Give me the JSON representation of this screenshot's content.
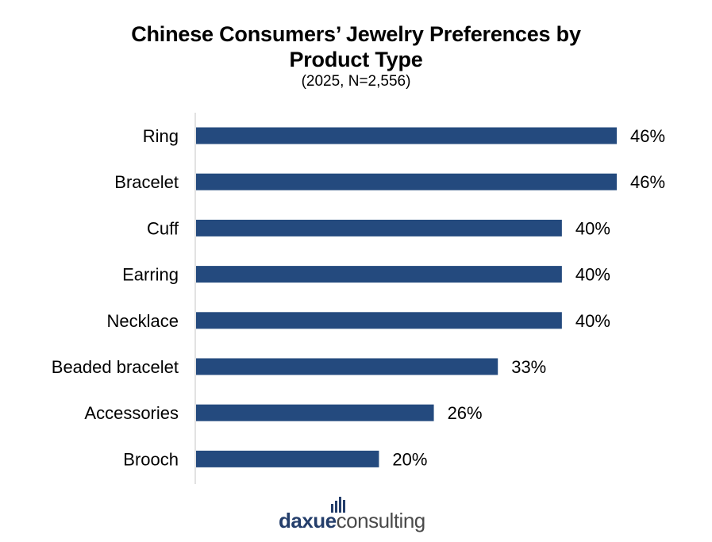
{
  "title_line1": "Chinese Consumers’ Jewelry Preferences by",
  "title_line2": "Product Type",
  "subtitle": "(2025, N=2,556)",
  "colors": {
    "bar": "#244a7e",
    "axis": "#d9d9d9",
    "logo_primary": "#243e6b",
    "logo_secondary": "#4a4a4a"
  },
  "logo": {
    "part1": "daxue",
    "part2": "consulting",
    "icon": "bar-chart-icon"
  },
  "chart_data": {
    "type": "bar",
    "orientation": "horizontal",
    "title": "Chinese Consumers’ Jewelry Preferences by Product Type",
    "subtitle": "(2025, N=2,556)",
    "categories": [
      "Ring",
      "Bracelet",
      "Cuff",
      "Earring",
      "Necklace",
      "Beaded bracelet",
      "Accessories",
      "Brooch"
    ],
    "values": [
      46,
      46,
      40,
      40,
      40,
      33,
      26,
      20
    ],
    "value_labels": [
      "46%",
      "46%",
      "40%",
      "40%",
      "40%",
      "33%",
      "26%",
      "20%"
    ],
    "xlim": [
      0,
      46
    ],
    "grid": false,
    "legend": "none"
  }
}
